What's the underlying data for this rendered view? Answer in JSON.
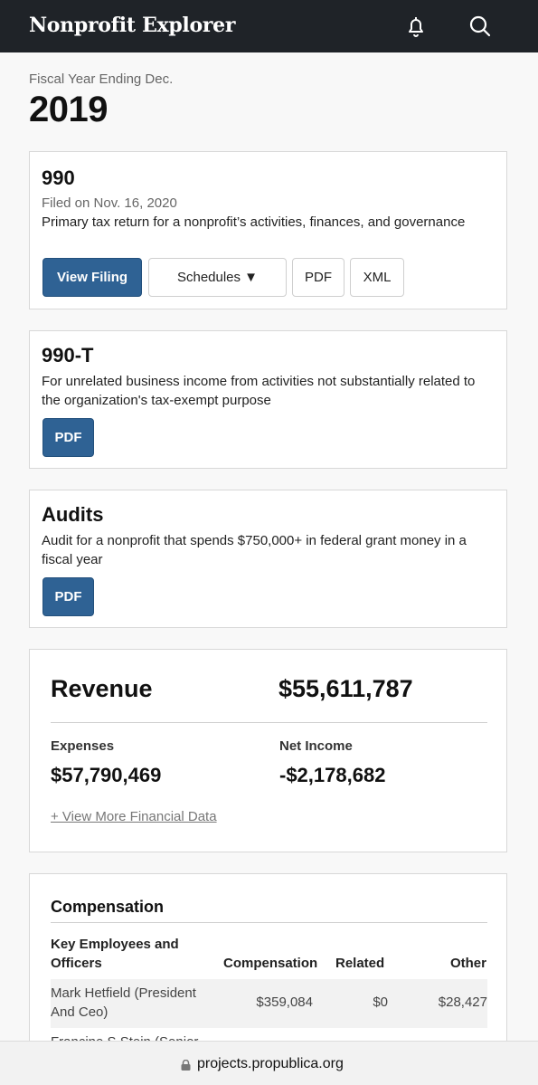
{
  "header": {
    "brand": "Nonprofit Explorer",
    "icons": [
      "bell-icon",
      "search-icon"
    ]
  },
  "fiscal": {
    "label": "Fiscal Year Ending Dec.",
    "year": "2019"
  },
  "filing990": {
    "title": "990",
    "filed": "Filed on Nov. 16, 2020",
    "description": "Primary tax return for a nonprofit’s activities, finances, and governance",
    "buttons": {
      "view": "View Filing",
      "schedules": "Schedules ▼",
      "pdf": "PDF",
      "xml": "XML"
    }
  },
  "filing990t": {
    "title": "990-T",
    "description": "For unrelated business income from activities not substantially related to the organization's tax-exempt purpose",
    "pdf": "PDF"
  },
  "audits": {
    "title": "Audits",
    "description": "Audit for a nonprofit that spends $750,000+ in federal grant money in a fiscal year",
    "pdf": "PDF"
  },
  "financials": {
    "revenue_label": "Revenue",
    "revenue_value": "$55,611,787",
    "expenses_label": "Expenses",
    "expenses_value": "$57,790,469",
    "net_label": "Net Income",
    "net_value": "-$2,178,682",
    "more_link": "+ View More Financial Data"
  },
  "compensation": {
    "title": "Compensation",
    "columns": {
      "name_line1": "Key Employees and",
      "name_line2": "Officers",
      "comp": "Compensation",
      "related": "Related",
      "other": "Other"
    },
    "rows": [
      {
        "name_line1": "Mark Hetfield (President",
        "name_line2": "And Ceo)",
        "comp": "$359,084",
        "related": "$0",
        "other": "$28,427"
      },
      {
        "name_line1": "Francine S Stein (Senior",
        "name_line2": "",
        "comp": "",
        "related": "",
        "other": ""
      }
    ]
  },
  "footer": {
    "url": "projects.propublica.org"
  }
}
